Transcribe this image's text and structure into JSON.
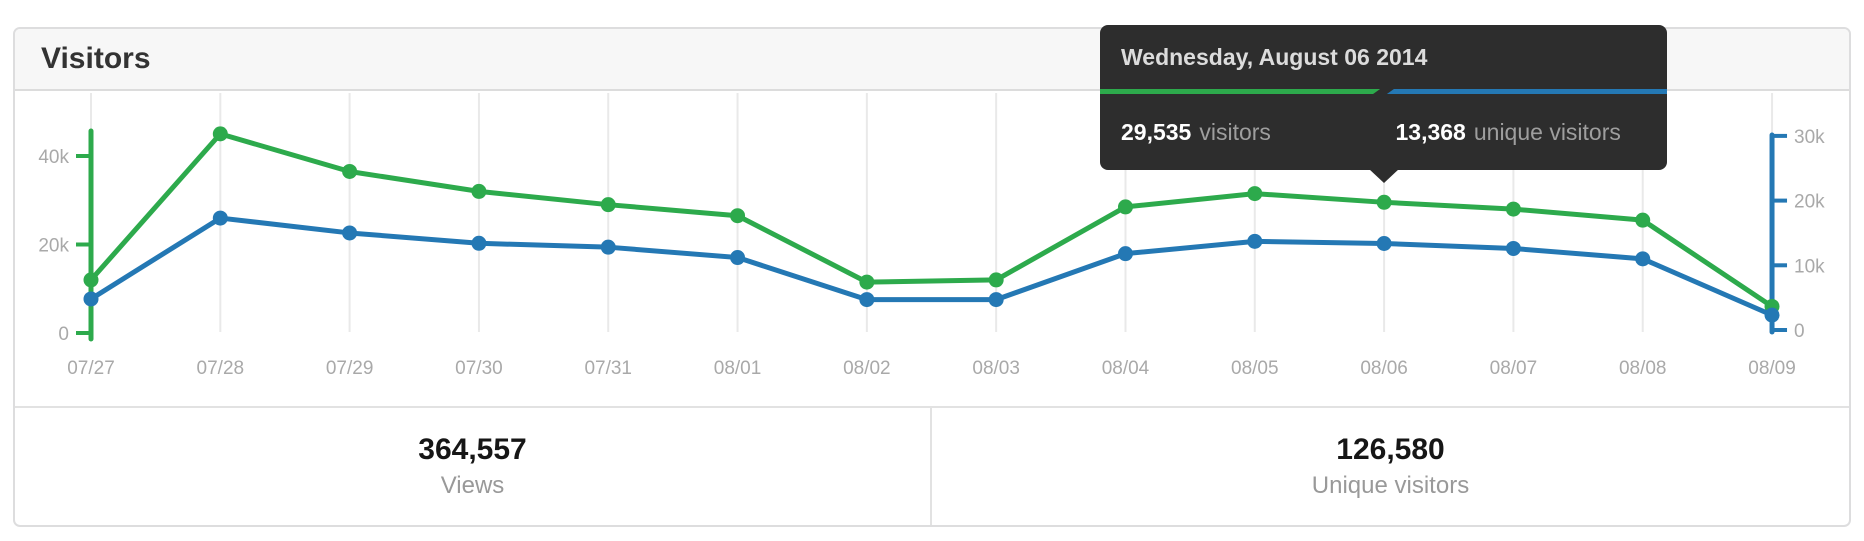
{
  "card": {
    "title": "Visitors"
  },
  "tooltip": {
    "date": "Wednesday, August 06 2014",
    "left": {
      "value": "29,535",
      "label": "visitors"
    },
    "right": {
      "value": "13,368",
      "label": "unique visitors"
    }
  },
  "summary": [
    {
      "value": "364,557",
      "label": "Views"
    },
    {
      "value": "126,580",
      "label": "Unique visitors"
    }
  ],
  "colors": {
    "green": "#2daa4c",
    "blue": "#2478b4",
    "grid": "#e9e9e9",
    "axis_label": "#a9a9a9",
    "tooltip_bg": "#2d2d2d"
  },
  "chart_data": {
    "type": "line",
    "title": "Visitors",
    "x": [
      "07/27",
      "07/28",
      "07/29",
      "07/30",
      "07/31",
      "08/01",
      "08/02",
      "08/03",
      "08/04",
      "08/05",
      "08/06",
      "08/07",
      "08/08",
      "08/09"
    ],
    "series": [
      {
        "name": "visitors",
        "color": "#2daa4c",
        "axis": "left",
        "values": [
          12000,
          45000,
          36500,
          32000,
          29000,
          26500,
          11500,
          12000,
          28500,
          31500,
          29535,
          28000,
          25500,
          6000
        ]
      },
      {
        "name": "unique visitors",
        "color": "#2478b4",
        "axis": "right",
        "values": [
          4800,
          17300,
          15000,
          13400,
          12800,
          11200,
          4700,
          4700,
          11800,
          13700,
          13368,
          12600,
          11000,
          2300
        ]
      }
    ],
    "axes": {
      "left": {
        "color": "#2daa4c",
        "ticks": [
          0,
          20000,
          40000
        ],
        "tick_labels": [
          "0",
          "20k",
          "40k"
        ],
        "range": [
          0,
          45000
        ]
      },
      "right": {
        "color": "#2478b4",
        "ticks": [
          0,
          10000,
          20000,
          30000
        ],
        "tick_labels": [
          "0",
          "10k",
          "20k",
          "30k"
        ],
        "range": [
          0,
          30000
        ]
      }
    },
    "grid": "vertical",
    "legend": "none",
    "highlight_index": 10,
    "highlight_values": {
      "visitors": 29535,
      "unique_visitors": 13368
    }
  }
}
